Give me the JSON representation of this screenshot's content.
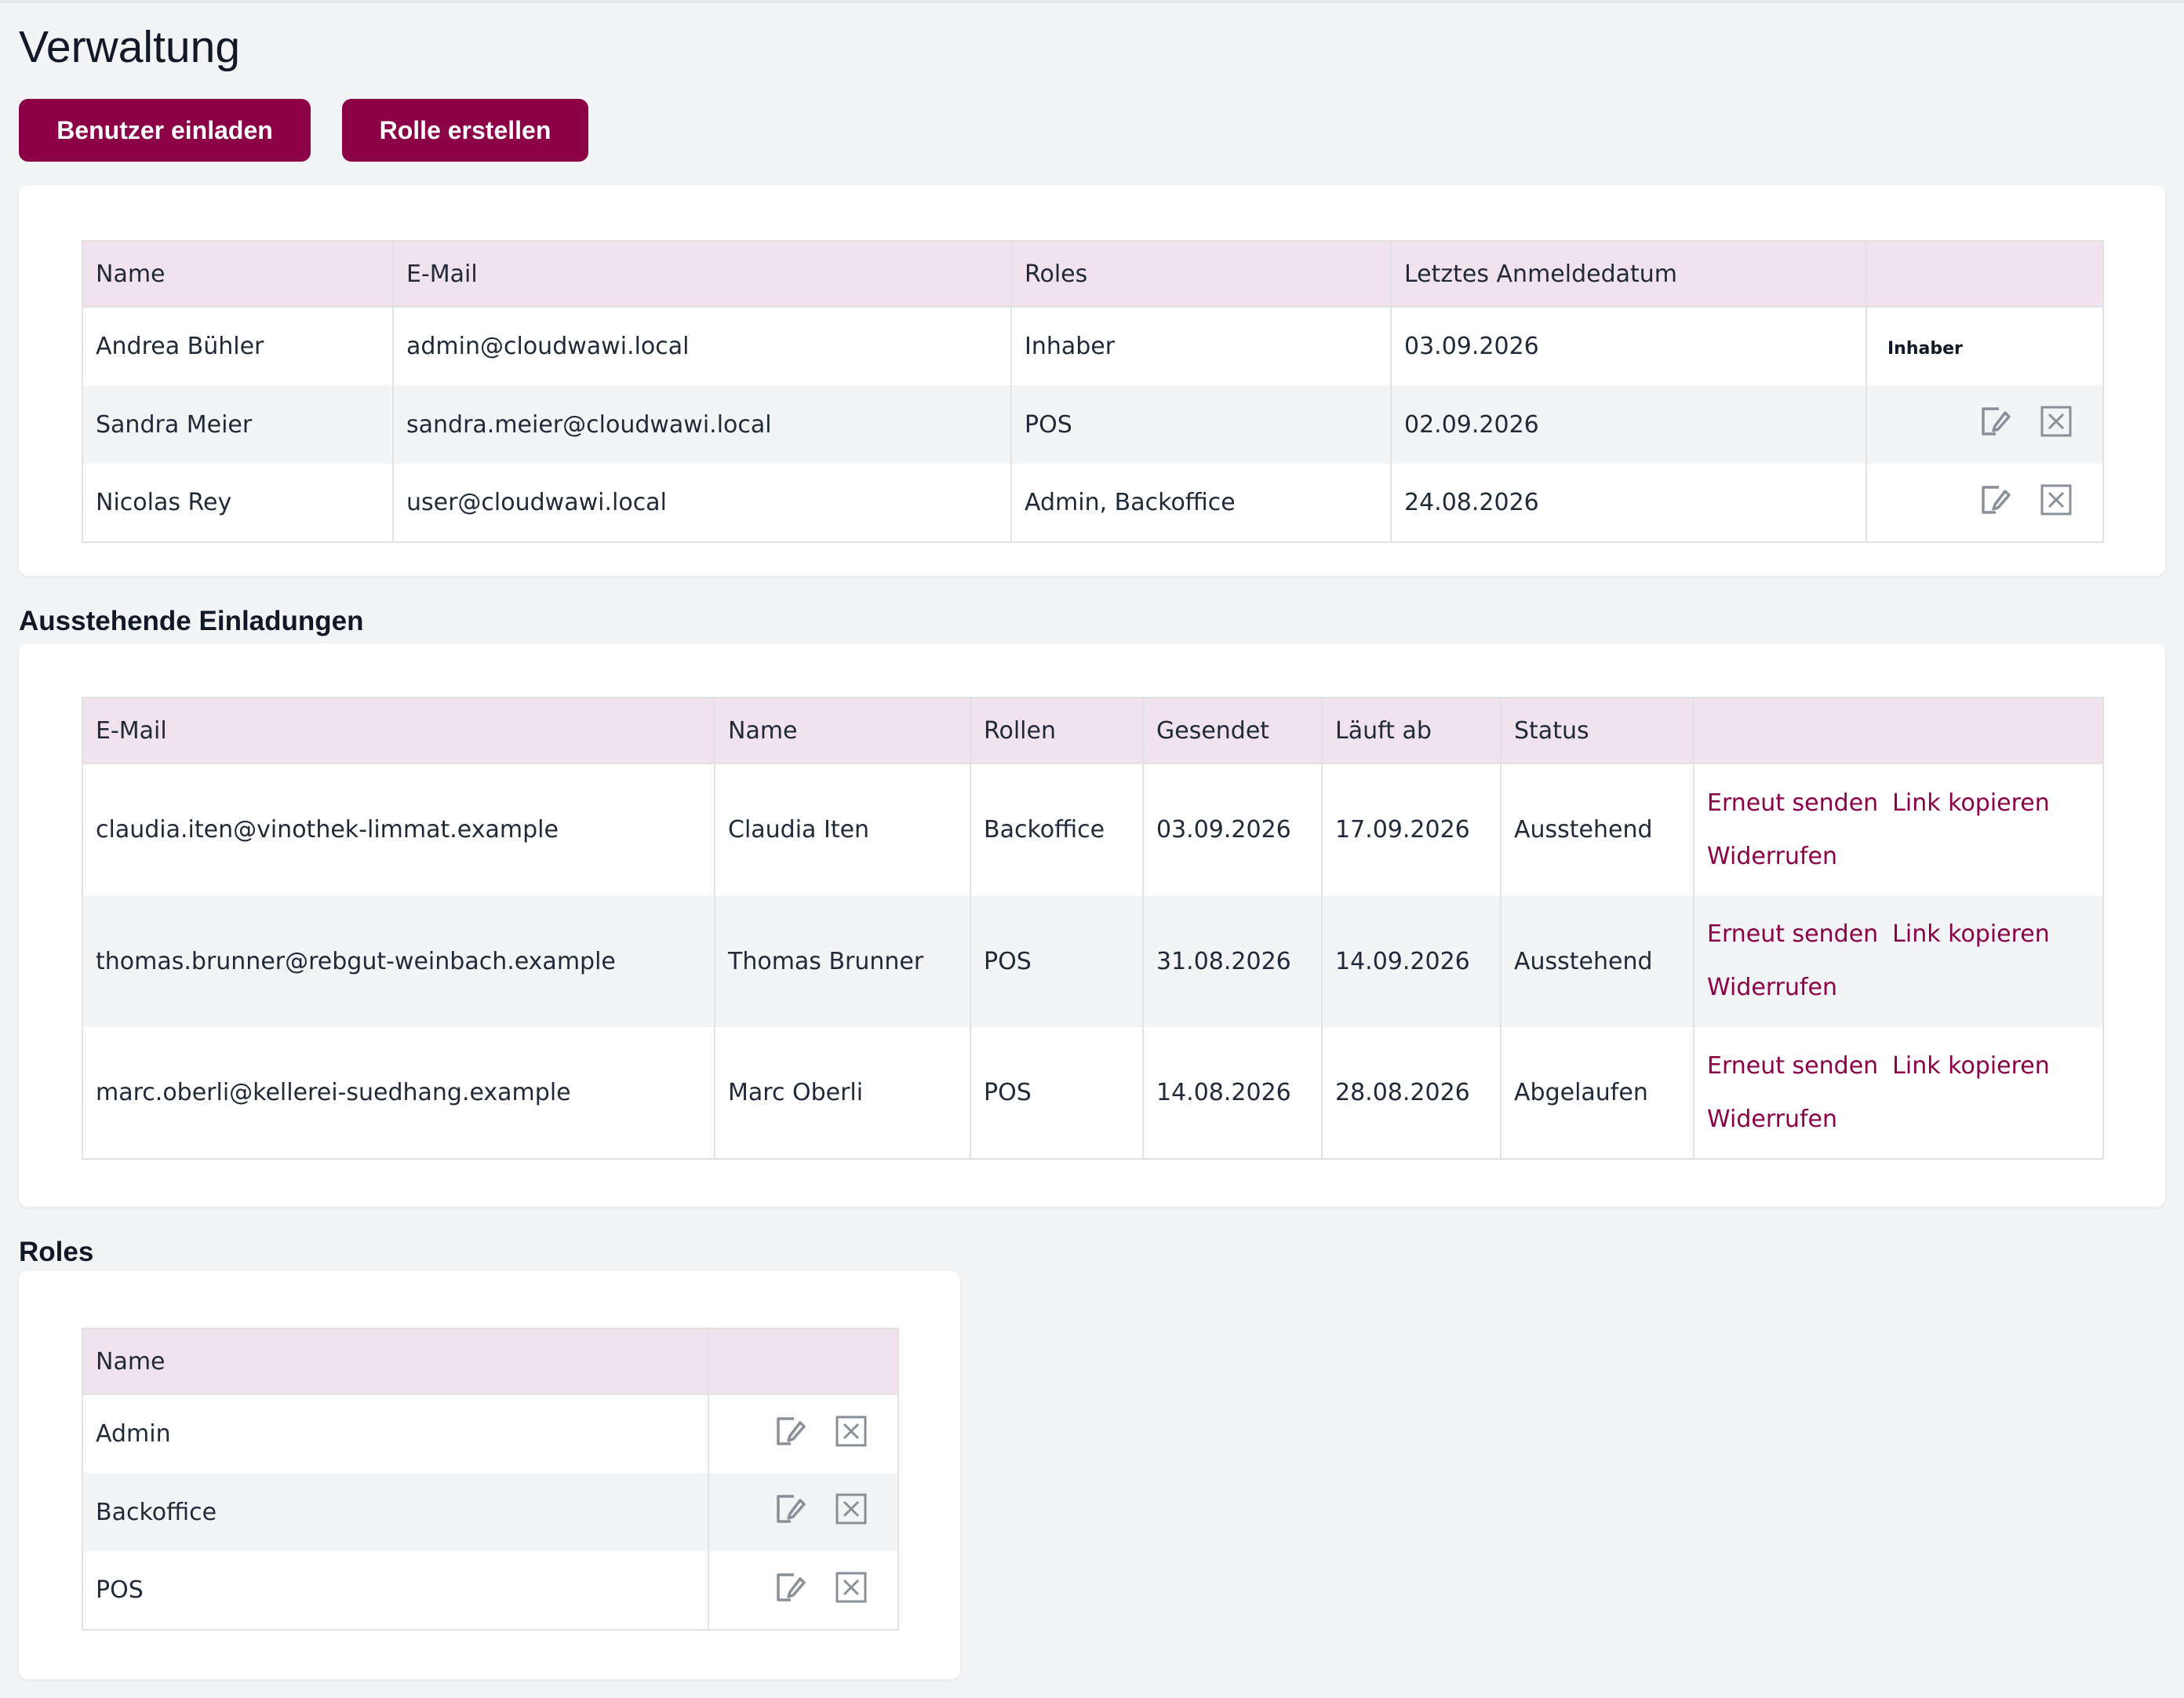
{
  "page": {
    "title": "Verwaltung",
    "accent_color": "#8b0046",
    "header_bg_color": "#f1e3ee"
  },
  "toolbar": {
    "invite_label": "Benutzer einladen",
    "create_role_label": "Rolle erstellen"
  },
  "users": {
    "columns": [
      "Name",
      "E-Mail",
      "Roles",
      "Letztes Anmeldedatum",
      ""
    ],
    "rows": [
      {
        "name": "Andrea Bühler",
        "email": "admin@cloudwawi.local",
        "roles": "Inhaber",
        "last_login": "03.09.2026",
        "owner_label": "Inhaber"
      },
      {
        "name": "Sandra Meier",
        "email": "sandra.meier@cloudwawi.local",
        "roles": "POS",
        "last_login": "02.09.2026"
      },
      {
        "name": "Nicolas Rey",
        "email": "user@cloudwawi.local",
        "roles": "Admin, Backoffice",
        "last_login": "24.08.2026"
      }
    ]
  },
  "invitations": {
    "title": "Ausstehende Einladungen",
    "columns": [
      "E-Mail",
      "Name",
      "Rollen",
      "Gesendet",
      "Läuft ab",
      "Status",
      ""
    ],
    "resend_label": "Erneut senden",
    "copy_label": "Link kopieren",
    "revoke_label": "Widerrufen",
    "rows": [
      {
        "email": "claudia.iten@vinothek-limmat.example",
        "name": "Claudia Iten",
        "roles": "Backoffice",
        "sent": "03.09.2026",
        "expires": "17.09.2026",
        "status": "Ausstehend"
      },
      {
        "email": "thomas.brunner@rebgut-weinbach.example",
        "name": "Thomas Brunner",
        "roles": "POS",
        "sent": "31.08.2026",
        "expires": "14.09.2026",
        "status": "Ausstehend"
      },
      {
        "email": "marc.oberli@kellerei-suedhang.example",
        "name": "Marc Oberli",
        "roles": "POS",
        "sent": "14.08.2026",
        "expires": "28.08.2026",
        "status": "Abgelaufen"
      }
    ]
  },
  "roles": {
    "title": "Roles",
    "columns": [
      "Name",
      ""
    ],
    "rows": [
      {
        "name": "Admin"
      },
      {
        "name": "Backoffice"
      },
      {
        "name": "POS"
      }
    ]
  },
  "icons": {
    "edit": "edit-icon",
    "delete": "delete-icon"
  }
}
